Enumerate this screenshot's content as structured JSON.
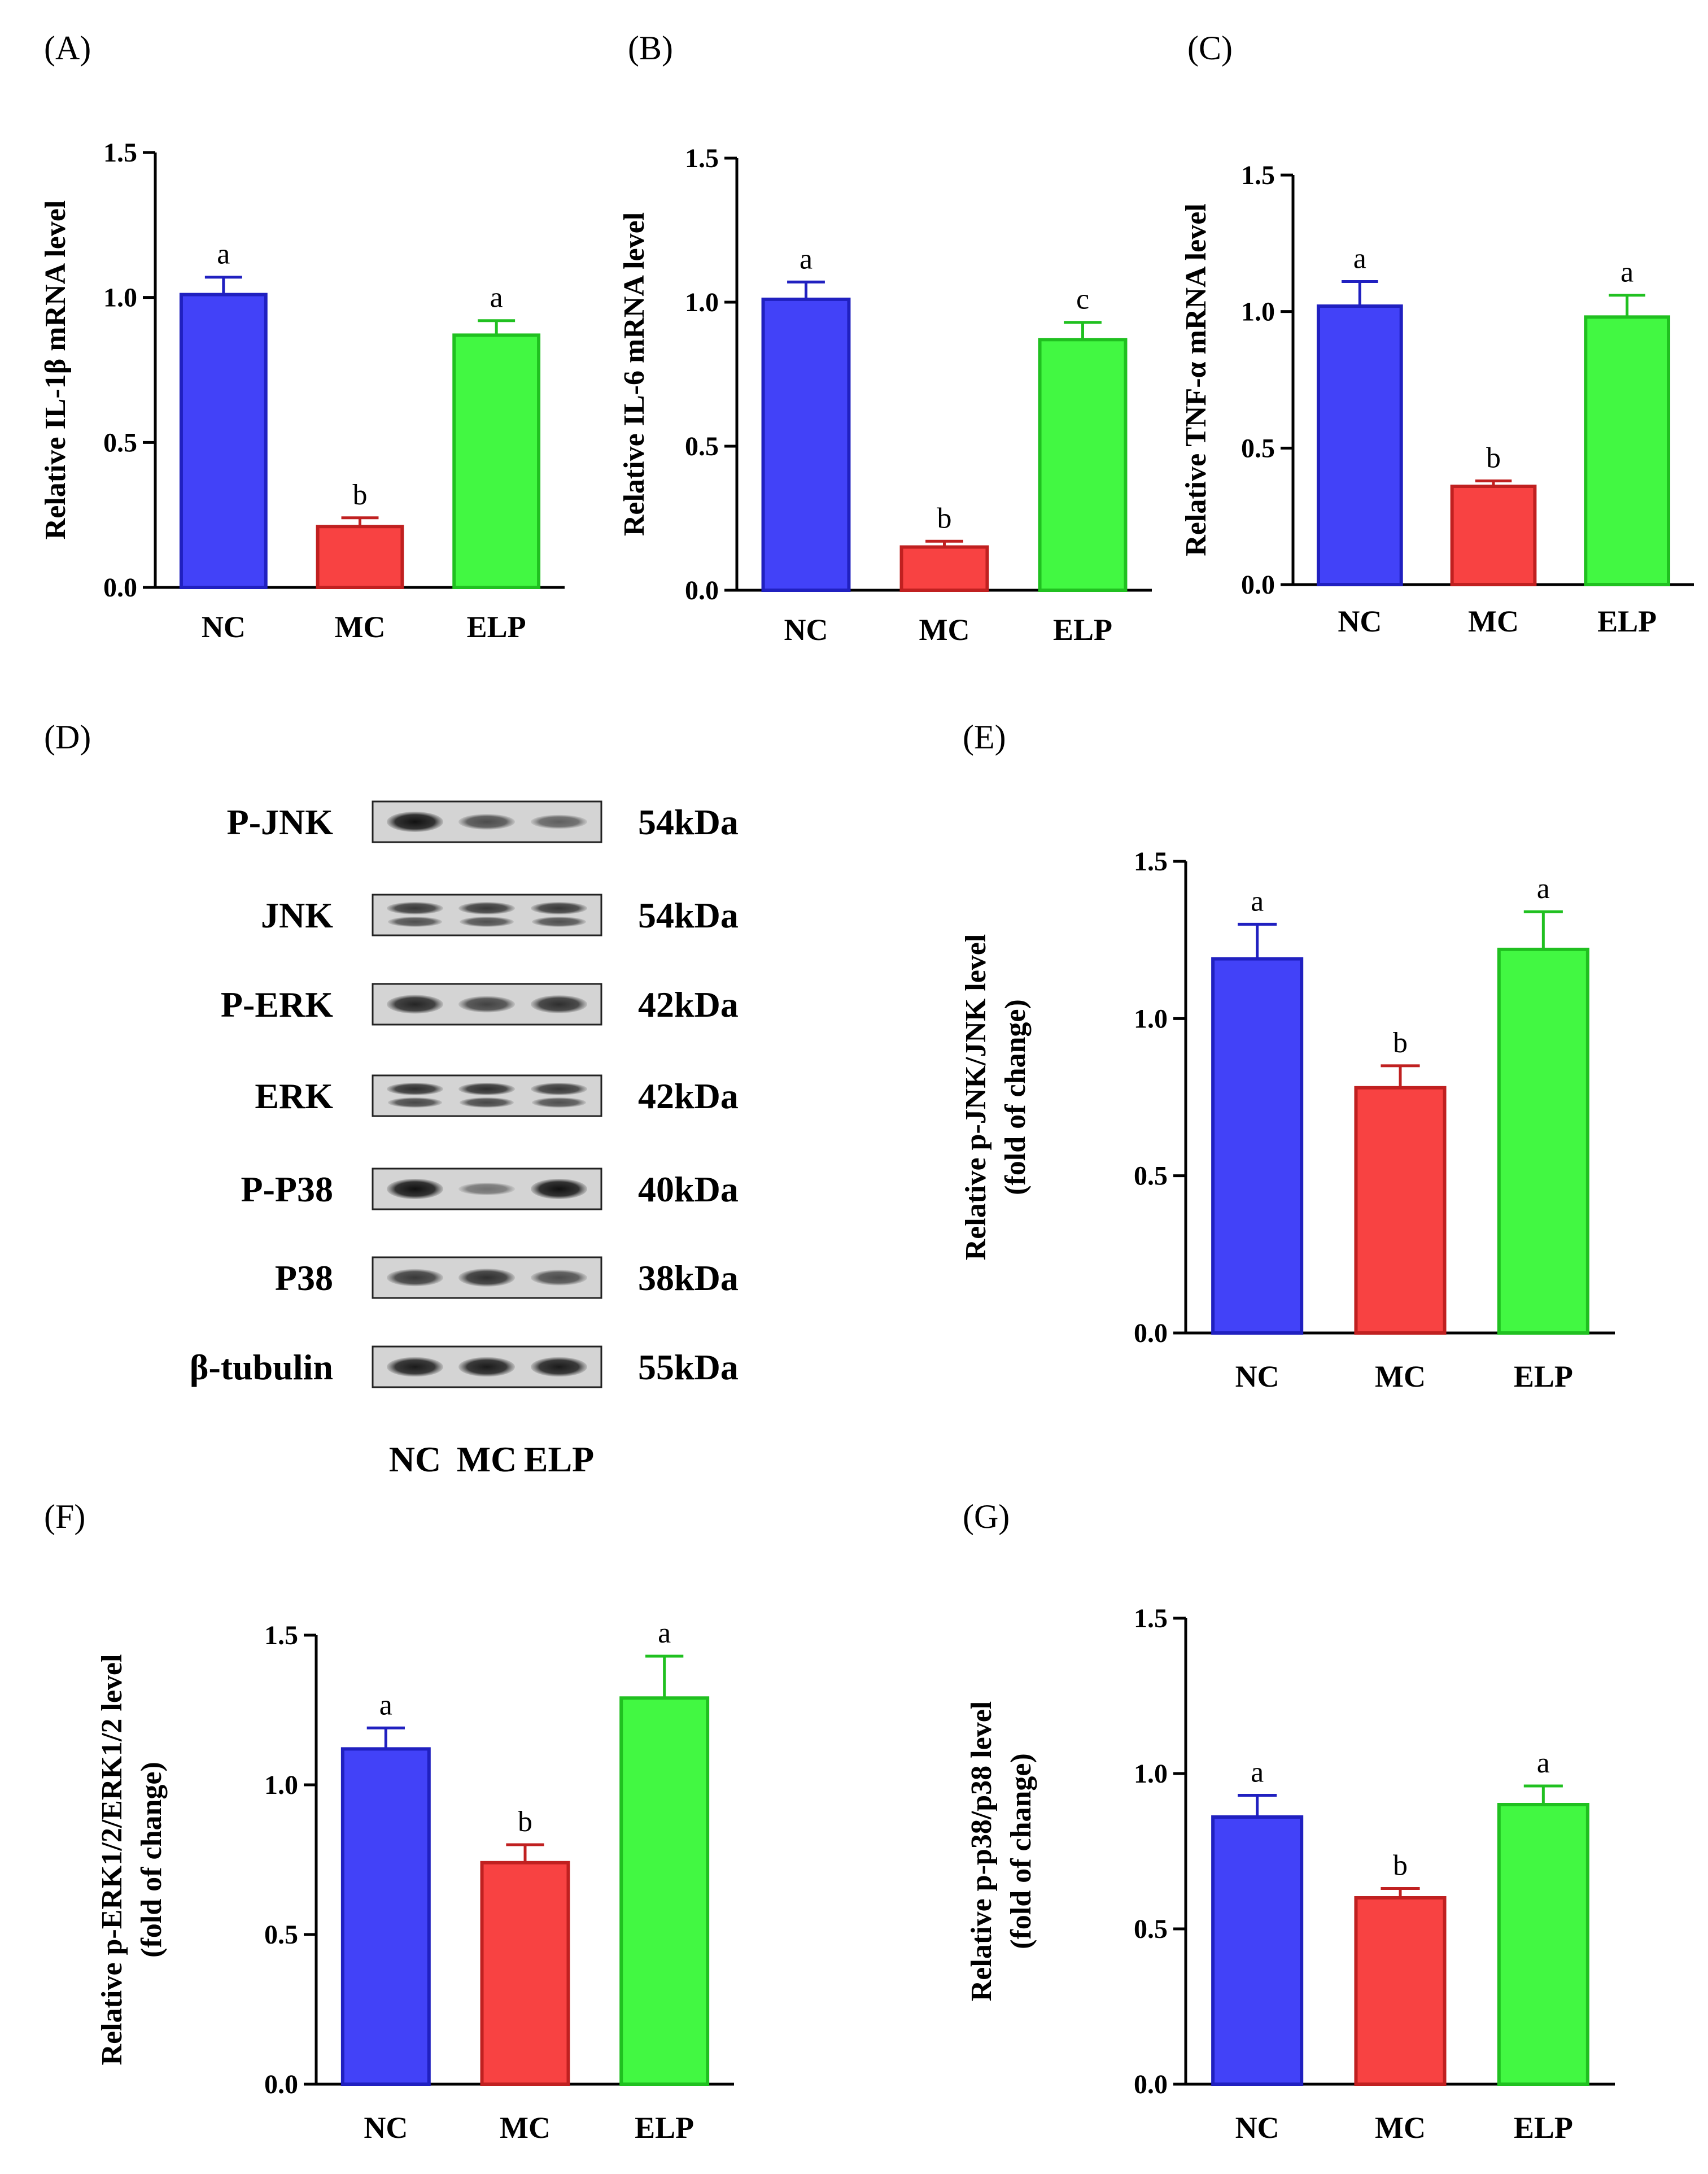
{
  "panel_labels": {
    "A": "(A)",
    "B": "(B)",
    "C": "(C)",
    "D": "(D)",
    "E": "(E)",
    "F": "(F)",
    "G": "(G)"
  },
  "colors": {
    "NC": "#4242f8",
    "MC": "#f84242",
    "ELP": "#42f842",
    "NC_edge": "#2020c0",
    "MC_edge": "#c02020",
    "ELP_edge": "#20c020"
  },
  "western_blot": {
    "rows": [
      {
        "protein": "P-JNK",
        "weight": "54kDa"
      },
      {
        "protein": "JNK",
        "weight": "54kDa"
      },
      {
        "protein": "P-ERK",
        "weight": "42kDa"
      },
      {
        "protein": "ERK",
        "weight": "42kDa"
      },
      {
        "protein": "P-P38",
        "weight": "40kDa"
      },
      {
        "protein": "P38",
        "weight": "38kDa"
      },
      {
        "protein": "β-tubulin",
        "weight": "55kDa"
      }
    ],
    "lanes": [
      "NC",
      "MC",
      "ELP"
    ]
  },
  "chart_data": [
    {
      "id": "A",
      "type": "bar",
      "categories": [
        "NC",
        "MC",
        "ELP"
      ],
      "values": [
        1.01,
        0.21,
        0.87
      ],
      "errors": [
        0.06,
        0.03,
        0.05
      ],
      "significance": [
        "a",
        "b",
        "a"
      ],
      "title": "",
      "xlabel": "",
      "ylabel": "Relative IL-1β mRNA level",
      "ylim": [
        0,
        1.5
      ],
      "ticks": [
        0.0,
        0.5,
        1.0,
        1.5
      ],
      "tick_labels": [
        "0.0",
        "0.5",
        "1.0",
        "1.5"
      ]
    },
    {
      "id": "B",
      "type": "bar",
      "categories": [
        "NC",
        "MC",
        "ELP"
      ],
      "values": [
        1.01,
        0.15,
        0.87
      ],
      "errors": [
        0.06,
        0.02,
        0.06
      ],
      "significance": [
        "a",
        "b",
        "c"
      ],
      "title": "",
      "xlabel": "",
      "ylabel": "Relative IL-6 mRNA level",
      "ylim": [
        0,
        1.5
      ],
      "ticks": [
        0.0,
        0.5,
        1.0,
        1.5
      ],
      "tick_labels": [
        "0.0",
        "0.5",
        "1.0",
        "1.5"
      ]
    },
    {
      "id": "C",
      "type": "bar",
      "categories": [
        "NC",
        "MC",
        "ELP"
      ],
      "values": [
        1.02,
        0.36,
        0.98
      ],
      "errors": [
        0.09,
        0.02,
        0.08
      ],
      "significance": [
        "a",
        "b",
        "a"
      ],
      "title": "",
      "xlabel": "",
      "ylabel": "Relative TNF-α mRNA level",
      "ylim": [
        0,
        1.5
      ],
      "ticks": [
        0.0,
        0.5,
        1.0,
        1.5
      ],
      "tick_labels": [
        "0.0",
        "0.5",
        "1.0",
        "1.5"
      ]
    },
    {
      "id": "E",
      "type": "bar",
      "categories": [
        "NC",
        "MC",
        "ELP"
      ],
      "values": [
        1.19,
        0.78,
        1.22
      ],
      "errors": [
        0.11,
        0.07,
        0.12
      ],
      "significance": [
        "a",
        "b",
        "a"
      ],
      "title": "",
      "xlabel": "",
      "ylabel": "Relative p-JNK/JNK level",
      "ylabel2": "(fold of change)",
      "ylim": [
        0,
        1.5
      ],
      "ticks": [
        0.0,
        0.5,
        1.0,
        1.5
      ],
      "tick_labels": [
        "0.0",
        "0.5",
        "1.0",
        "1.5"
      ]
    },
    {
      "id": "F",
      "type": "bar",
      "categories": [
        "NC",
        "MC",
        "ELP"
      ],
      "values": [
        1.12,
        0.74,
        1.29
      ],
      "errors": [
        0.07,
        0.06,
        0.14
      ],
      "significance": [
        "a",
        "b",
        "a"
      ],
      "title": "",
      "xlabel": "",
      "ylabel": "Relative p-ERK1/2/ERK1/2 level",
      "ylabel2": "(fold of change)",
      "ylim": [
        0,
        1.5
      ],
      "ticks": [
        0.0,
        0.5,
        1.0,
        1.5
      ],
      "tick_labels": [
        "0.0",
        "0.5",
        "1.0",
        "1.5"
      ]
    },
    {
      "id": "G",
      "type": "bar",
      "categories": [
        "NC",
        "MC",
        "ELP"
      ],
      "values": [
        0.86,
        0.6,
        0.9
      ],
      "errors": [
        0.07,
        0.03,
        0.06
      ],
      "significance": [
        "a",
        "b",
        "a"
      ],
      "title": "",
      "xlabel": "",
      "ylabel": "Relative p-p38/p38 level",
      "ylabel2": "(fold of change)",
      "ylim": [
        0,
        1.5
      ],
      "ticks": [
        0.0,
        0.5,
        1.0,
        1.5
      ],
      "tick_labels": [
        "0.0",
        "0.5",
        "1.0",
        "1.5"
      ]
    }
  ]
}
